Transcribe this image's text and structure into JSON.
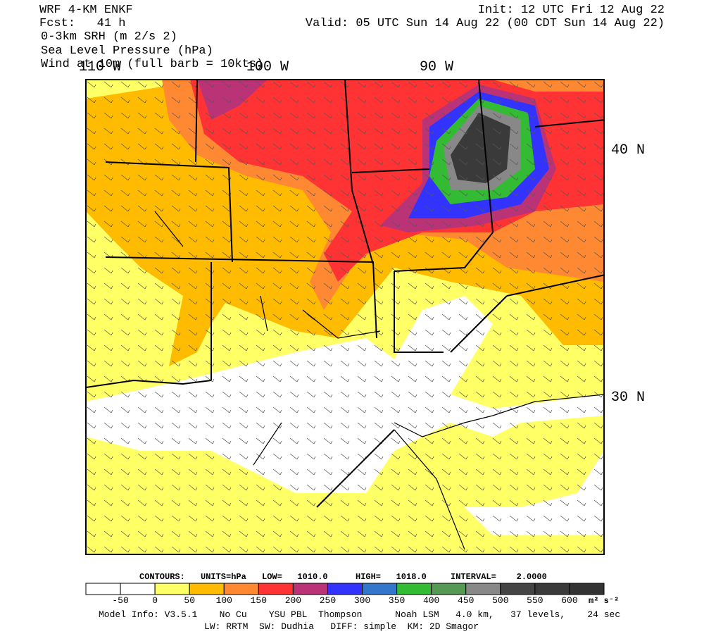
{
  "header": {
    "left": [
      "WRF 4-KM ENKF",
      "Fcst:   41 h",
      "0-3km SRH (m 2/s 2)",
      "Sea Level Pressure (hPa)",
      "Wind at 10m (full barb = 10kts)"
    ],
    "right": [
      "Init: 12 UTC Fri 12 Aug 22",
      "Valid: 05 UTC Sun 14 Aug 22 (00 CDT Sun 14 Aug 22)"
    ]
  },
  "map": {
    "lon_labels": [
      "110 W",
      "100 W",
      "90 W"
    ],
    "lat_labels": [
      "40 N",
      "30 N"
    ]
  },
  "contours": {
    "label": "CONTOURS:",
    "units": "UNITS=hPa",
    "low": "LOW=   1010.0",
    "high": "HIGH=   1018.0",
    "interval": "INTERVAL=    2.0000"
  },
  "colorbar": {
    "levels": [
      -50,
      0,
      50,
      100,
      150,
      200,
      250,
      300,
      350,
      400,
      450,
      500,
      550,
      600
    ],
    "colors": [
      "#ffffff",
      "#ffffff",
      "#ffff66",
      "#ffbb00",
      "#ff8833",
      "#ff3333",
      "#bb3377",
      "#3333ff",
      "#3377cc",
      "#33bb33",
      "#559955",
      "#888888",
      "#444444",
      "#3a3a3a",
      "#333333"
    ],
    "units": "m² s⁻²"
  },
  "footer": [
    "Model Info: V3.5.1    No Cu    YSU PBL  Thompson      Noah LSM   4.0 km,   37 levels,    24 sec",
    "LW: RRTM  SW: Dudhia   DIFF: simple  KM: 2D Smagor"
  ]
}
